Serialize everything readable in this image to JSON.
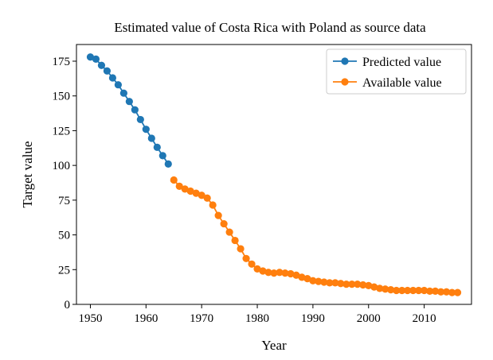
{
  "chart_data": {
    "type": "line",
    "title": "Estimated value of Costa Rica with Poland as source data",
    "xlabel": "Year",
    "ylabel": "Target value",
    "xlim": [
      1947.5,
      2018.5
    ],
    "ylim": [
      0,
      187
    ],
    "xticks": [
      1950,
      1960,
      1970,
      1980,
      1990,
      2000,
      2010
    ],
    "yticks": [
      0,
      25,
      50,
      75,
      100,
      125,
      150,
      175
    ],
    "grid": false,
    "legend_position": "top-right",
    "series": [
      {
        "name": "Predicted value",
        "color": "#1f77b4",
        "x": [
          1950,
          1951,
          1952,
          1953,
          1954,
          1955,
          1956,
          1957,
          1958,
          1959,
          1960,
          1961,
          1962,
          1963,
          1964
        ],
        "y": [
          178,
          176.5,
          172,
          168,
          163,
          158,
          152,
          146,
          140,
          133,
          126,
          119.5,
          113,
          107,
          101
        ]
      },
      {
        "name": "Available value",
        "color": "#ff7f0e",
        "x": [
          1965,
          1966,
          1967,
          1968,
          1969,
          1970,
          1971,
          1972,
          1973,
          1974,
          1975,
          1976,
          1977,
          1978,
          1979,
          1980,
          1981,
          1982,
          1983,
          1984,
          1985,
          1986,
          1987,
          1988,
          1989,
          1990,
          1991,
          1992,
          1993,
          1994,
          1995,
          1996,
          1997,
          1998,
          1999,
          2000,
          2001,
          2002,
          2003,
          2004,
          2005,
          2006,
          2007,
          2008,
          2009,
          2010,
          2011,
          2012,
          2013,
          2014,
          2015,
          2016
        ],
        "y": [
          89.5,
          85,
          83,
          81.5,
          80,
          78.5,
          76.5,
          71.5,
          64,
          58,
          52,
          46,
          40,
          33,
          29,
          25.5,
          24,
          23,
          22.5,
          23,
          22.5,
          22,
          21,
          19.5,
          18.5,
          17,
          16.5,
          16,
          15.5,
          15.5,
          15,
          14.5,
          14.5,
          14.5,
          14,
          13.5,
          12.5,
          11.5,
          11,
          10.5,
          10,
          10,
          10,
          10,
          10,
          10,
          9.5,
          9.5,
          9,
          9,
          8.5,
          8.5
        ]
      }
    ]
  }
}
